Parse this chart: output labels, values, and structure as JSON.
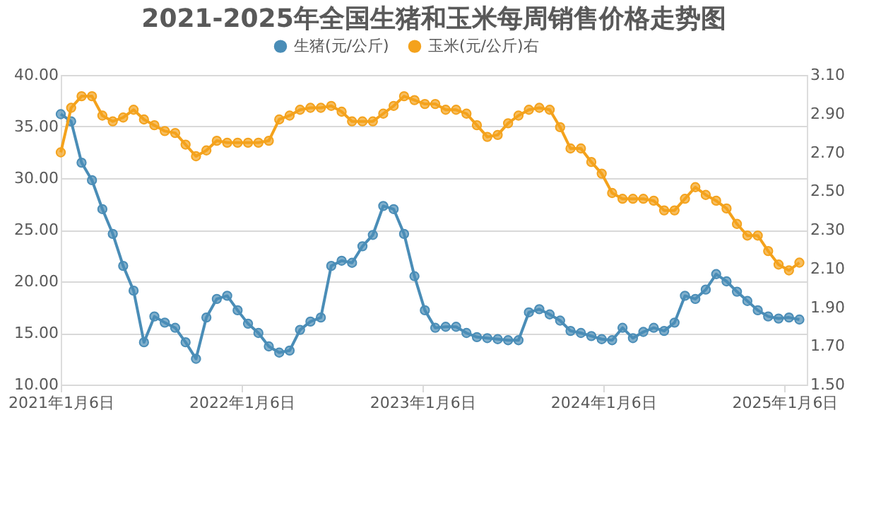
{
  "chart_data": {
    "type": "line",
    "title": "2021-2025年全国生猪和玉米每周销售价格走势图",
    "x": [
      "2021-01-06",
      "2021-01-27",
      "2021-02-17",
      "2021-03-10",
      "2021-03-31",
      "2021-04-21",
      "2021-05-12",
      "2021-06-02",
      "2021-06-23",
      "2021-07-14",
      "2021-08-04",
      "2021-08-25",
      "2021-09-15",
      "2021-10-06",
      "2021-10-27",
      "2021-11-17",
      "2021-12-08",
      "2021-12-29",
      "2022-01-19",
      "2022-02-09",
      "2022-03-02",
      "2022-03-23",
      "2022-04-13",
      "2022-05-04",
      "2022-05-25",
      "2022-06-15",
      "2022-07-06",
      "2022-07-27",
      "2022-08-17",
      "2022-09-07",
      "2022-09-28",
      "2022-10-19",
      "2022-11-09",
      "2022-11-30",
      "2022-12-21",
      "2023-01-11",
      "2023-02-01",
      "2023-02-22",
      "2023-03-15",
      "2023-04-05",
      "2023-04-26",
      "2023-05-17",
      "2023-06-07",
      "2023-06-28",
      "2023-07-19",
      "2023-08-09",
      "2023-08-30",
      "2023-09-20",
      "2023-10-11",
      "2023-11-01",
      "2023-11-22",
      "2023-12-13",
      "2024-01-03",
      "2024-01-24",
      "2024-02-14",
      "2024-03-06",
      "2024-03-27",
      "2024-04-17",
      "2024-05-08",
      "2024-05-29",
      "2024-06-19",
      "2024-07-10",
      "2024-07-31",
      "2024-08-21",
      "2024-09-11",
      "2024-10-02",
      "2024-10-23",
      "2024-11-13",
      "2024-12-04",
      "2024-12-25",
      "2025-01-15",
      "2025-02-05"
    ],
    "series": [
      {
        "name": "生猪(元/公斤)",
        "color": "#4a8db7",
        "values": [
          36.2,
          35.5,
          31.5,
          29.8,
          27.0,
          24.6,
          21.5,
          19.1,
          14.1,
          16.6,
          16.0,
          15.5,
          14.1,
          12.5,
          16.5,
          18.3,
          18.6,
          17.2,
          15.9,
          15.0,
          13.7,
          13.1,
          13.3,
          15.3,
          16.1,
          16.5,
          21.5,
          22.0,
          21.8,
          23.4,
          24.5,
          27.3,
          27.0,
          24.6,
          20.5,
          17.2,
          15.5,
          15.6,
          15.6,
          15.0,
          14.6,
          14.5,
          14.4,
          14.3,
          14.3,
          17.0,
          17.3,
          16.8,
          16.2,
          15.2,
          15.0,
          14.7,
          14.4,
          14.3,
          15.5,
          14.5,
          15.1,
          15.5,
          15.2,
          16.0,
          18.6,
          18.3,
          19.2,
          20.7,
          20.0,
          19.0,
          18.1,
          17.2,
          16.6,
          16.4,
          16.5,
          16.3
        ]
      },
      {
        "name": "玉米(元/公斤)右",
        "color": "#f4a21c",
        "axis": "y2",
        "values": [
          2.7,
          2.93,
          2.99,
          2.99,
          2.89,
          2.86,
          2.88,
          2.92,
          2.87,
          2.84,
          2.81,
          2.8,
          2.74,
          2.68,
          2.71,
          2.76,
          2.75,
          2.75,
          2.75,
          2.75,
          2.76,
          2.87,
          2.89,
          2.92,
          2.93,
          2.93,
          2.94,
          2.91,
          2.86,
          2.86,
          2.86,
          2.9,
          2.94,
          2.99,
          2.97,
          2.95,
          2.95,
          2.92,
          2.92,
          2.9,
          2.84,
          2.78,
          2.79,
          2.85,
          2.89,
          2.92,
          2.93,
          2.92,
          2.83,
          2.72,
          2.72,
          2.65,
          2.59,
          2.49,
          2.46,
          2.46,
          2.46,
          2.45,
          2.4,
          2.4,
          2.46,
          2.52,
          2.48,
          2.45,
          2.41,
          2.33,
          2.27,
          2.27,
          2.19,
          2.12,
          2.09,
          2.13
        ]
      }
    ],
    "xlim": [
      "2021-01-06",
      "2025-02-20"
    ],
    "xticks": [
      {
        "value": "2021-01-06",
        "label": "2021年1月6日"
      },
      {
        "value": "2022-01-06",
        "label": "2022年1月6日"
      },
      {
        "value": "2023-01-06",
        "label": "2023年1月6日"
      },
      {
        "value": "2024-01-06",
        "label": "2024年1月6日"
      },
      {
        "value": "2025-01-06",
        "label": "2025年1月6日"
      }
    ],
    "ylim": [
      10,
      40
    ],
    "yticks": [
      {
        "value": 10,
        "label": "10.00"
      },
      {
        "value": 15,
        "label": "15.00"
      },
      {
        "value": 20,
        "label": "20.00"
      },
      {
        "value": 25,
        "label": "25.00"
      },
      {
        "value": 30,
        "label": "30.00"
      },
      {
        "value": 35,
        "label": "35.00"
      },
      {
        "value": 40,
        "label": "40.00"
      }
    ],
    "y2lim": [
      1.5,
      3.1
    ],
    "y2ticks": [
      {
        "value": 1.5,
        "label": "1.50"
      },
      {
        "value": 1.7,
        "label": "1.70"
      },
      {
        "value": 1.9,
        "label": "1.90"
      },
      {
        "value": 2.1,
        "label": "2.10"
      },
      {
        "value": 2.3,
        "label": "2.30"
      },
      {
        "value": 2.5,
        "label": "2.50"
      },
      {
        "value": 2.7,
        "label": "2.70"
      },
      {
        "value": 2.9,
        "label": "2.90"
      },
      {
        "value": 3.1,
        "label": "3.10"
      }
    ],
    "grid": "y",
    "legend": "top",
    "marker": "circle",
    "line_style": "solid"
  }
}
